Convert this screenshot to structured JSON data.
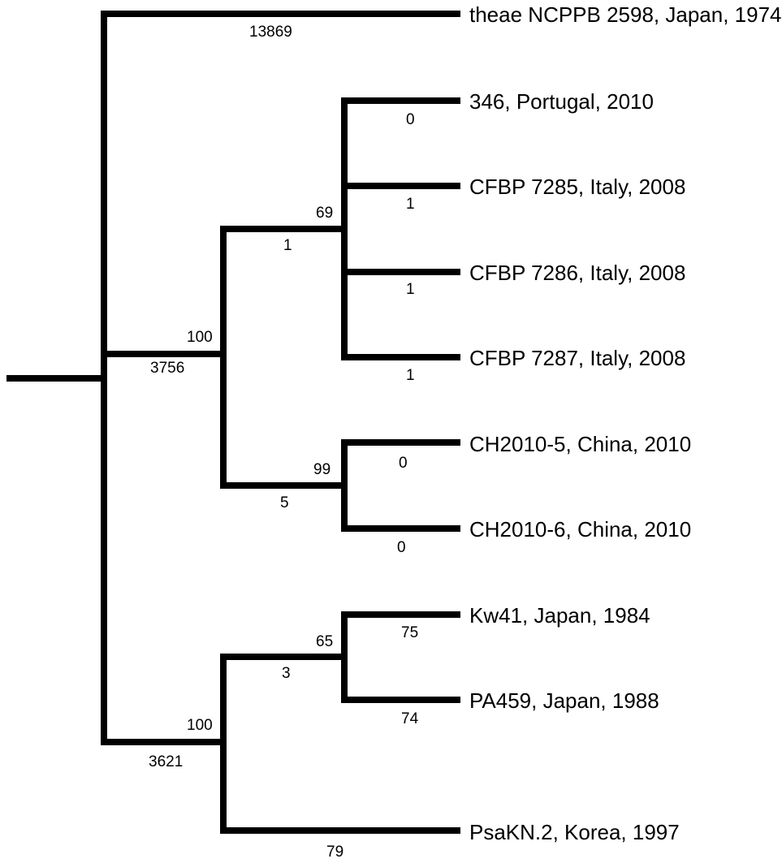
{
  "tree": {
    "leaves": [
      {
        "id": "theae",
        "label": "theae NCPPB 2598, Japan, 1974",
        "branch_length": "13869"
      },
      {
        "id": "l346",
        "label": "346, Portugal, 2010",
        "branch_length": "0"
      },
      {
        "id": "cfbp7285",
        "label": "CFBP 7285, Italy, 2008",
        "branch_length": "1"
      },
      {
        "id": "cfbp7286",
        "label": "CFBP 7286, Italy, 2008",
        "branch_length": "1"
      },
      {
        "id": "cfbp7287",
        "label": "CFBP 7287, Italy, 2008",
        "branch_length": "1"
      },
      {
        "id": "ch20105",
        "label": "CH2010-5, China, 2010",
        "branch_length": "0"
      },
      {
        "id": "ch20106",
        "label": "CH2010-6, China, 2010",
        "branch_length": "0"
      },
      {
        "id": "kw41",
        "label": "Kw41, Japan, 1984",
        "branch_length": "75"
      },
      {
        "id": "pa459",
        "label": "PA459, Japan, 1988",
        "branch_length": "74"
      },
      {
        "id": "psakn2",
        "label": "PsaKN.2, Korea, 1997",
        "branch_length": "79"
      }
    ],
    "internal_nodes": [
      {
        "id": "clade-europe",
        "support": "69",
        "branch_length": "1"
      },
      {
        "id": "clade-china",
        "support": "99",
        "branch_length": "5"
      },
      {
        "id": "clade-europe-china",
        "support": "100",
        "branch_length": "3756"
      },
      {
        "id": "clade-japan",
        "support": "65",
        "branch_length": "3"
      },
      {
        "id": "clade-asia",
        "support": "100",
        "branch_length": "3621"
      }
    ]
  }
}
